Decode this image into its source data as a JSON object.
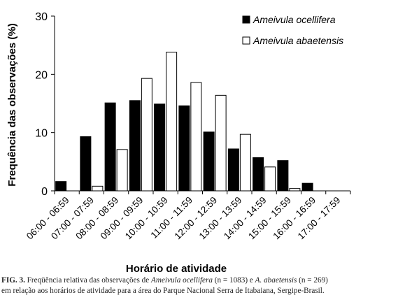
{
  "chart_data": {
    "type": "bar",
    "ylabel": "Frequência das observações (%)",
    "xlabel": "Horário de atividade",
    "ylim": [
      0,
      30
    ],
    "yticks": [
      0,
      10,
      20,
      30
    ],
    "grid": false,
    "legend_position": "top-right",
    "categories": [
      "06:00 - 06:59",
      "07:00 - 07:59",
      "08:00 - 08:59",
      "09:00 - 09:59",
      "10:00 - 10:59",
      "11:00 - 11:59",
      "12:00 - 12:59",
      "13:00 - 13:59",
      "14:00 - 14:59",
      "15:00 - 15:59",
      "16:00 - 16:59",
      "17:00 - 17:59"
    ],
    "series": [
      {
        "name": "Ameivula ocellifera",
        "fill": "#000000",
        "values": [
          1.6,
          9.3,
          15.1,
          15.5,
          14.9,
          14.6,
          10.1,
          7.2,
          5.7,
          5.2,
          1.3,
          0
        ]
      },
      {
        "name": "Ameivula abaetensis",
        "fill": "#ffffff",
        "values": [
          0,
          0.8,
          7.1,
          19.3,
          23.8,
          18.6,
          16.4,
          9.7,
          4.1,
          0.4,
          0,
          0
        ]
      }
    ]
  },
  "caption": {
    "fig_label": "FIG. 3.",
    "part1": " Freqüência relativa das observações de ",
    "species1": "Ameivula ocellifera",
    "part2": " (n = 1083) e ",
    "species2": "A. abaetensis",
    "part3": " (n = 269)",
    "line2": "em relação aos horários de atividade para a  área do Parque Nacional Serra de Itabaiana, Sergipe-Brasil."
  }
}
